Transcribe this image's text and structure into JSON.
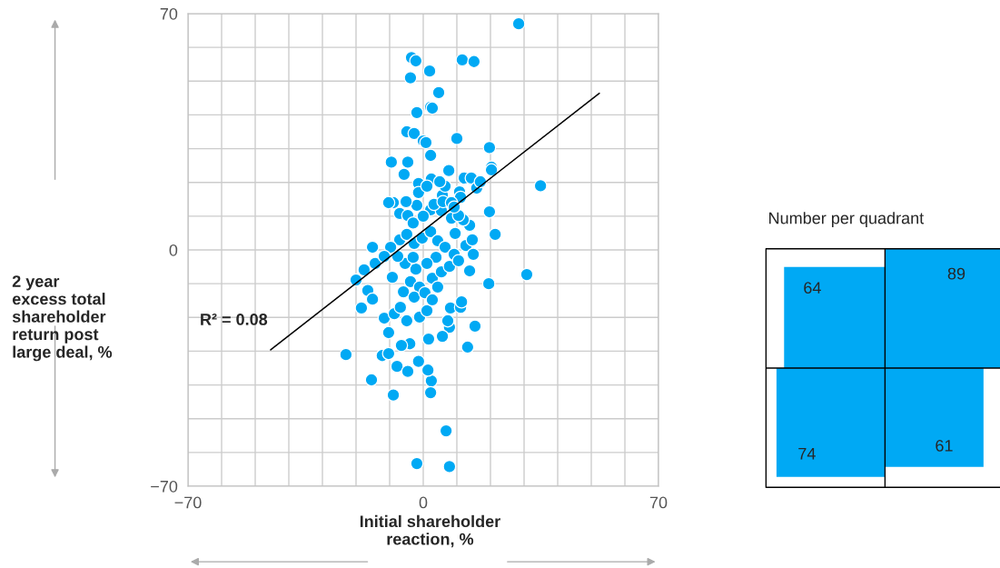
{
  "chart_data": [
    {
      "type": "scatter",
      "xlabel": "Initial shareholder\nreaction, %",
      "ylabel": "2 year\nexcess total\nshareholder\nreturn post\nlarge deal, %",
      "xlim": [
        -70,
        70
      ],
      "ylim": [
        -70,
        70
      ],
      "xticks": [
        {
          "value": -70,
          "label": "−70"
        },
        {
          "value": -60,
          "label": null
        },
        {
          "value": -50,
          "label": null
        },
        {
          "value": -40,
          "label": null
        },
        {
          "value": -30,
          "label": null
        },
        {
          "value": -20,
          "label": null
        },
        {
          "value": -10,
          "label": null
        },
        0,
        {
          "value": 10,
          "label": null
        },
        {
          "value": 20,
          "label": null
        },
        {
          "value": 30,
          "label": null
        },
        {
          "value": 40,
          "label": null
        },
        {
          "value": 50,
          "label": null
        },
        {
          "value": 60,
          "label": null
        },
        70
      ],
      "yticks": [
        {
          "value": -70,
          "label": "−70"
        },
        {
          "value": -60,
          "label": null
        },
        {
          "value": -50,
          "label": null
        },
        {
          "value": -40,
          "label": null
        },
        {
          "value": -30,
          "label": null
        },
        {
          "value": -20,
          "label": null
        },
        {
          "value": -10,
          "label": null
        },
        0,
        {
          "value": 10,
          "label": null
        },
        {
          "value": 20,
          "label": null
        },
        {
          "value": 30,
          "label": null
        },
        {
          "value": 40,
          "label": null
        },
        {
          "value": 50,
          "label": null
        },
        {
          "value": 60,
          "label": null
        },
        70
      ],
      "grid": true,
      "annotations": [
        "R² = 0.08"
      ],
      "series": [
        {
          "type": "scatter",
          "marker": "circle",
          "color": "#00a9f4",
          "x": [
            28.4,
            -3.5,
            -2.2,
            11.6,
            15.1,
            1.9,
            -3.8,
            4.6,
            2.2,
            2.7,
            -1.9,
            -4.9,
            -2.7,
            0,
            0.8,
            10,
            19.7,
            2.2,
            -4.6,
            -9.5,
            20.3,
            20.3,
            34.9,
            2.4,
            -1.4,
            -5.7,
            7.6,
            12.2,
            14.3,
            15.9,
            17,
            19.7,
            10.8,
            11.1,
            5.7,
            6.5,
            2.2,
            5.4,
            -1.9,
            -5.1,
            -8.9,
            -10.3,
            -7,
            -4.6,
            21.4,
            13.8,
            11.9,
            8.4,
            10.5,
            9.5,
            12.7,
            -15.1,
            13.8,
            19.5,
            30.8,
            -20,
            -17.6,
            -14.3,
            -16.5,
            -18.4,
            -15.1,
            -23,
            -12.2,
            -15.4,
            -8.9,
            -7.8,
            -4.6,
            -1.4,
            2.4,
            2.2,
            1.4,
            13.2,
            15.4,
            7.8,
            5.7,
            1.6,
            -4,
            -10.3,
            -6.5,
            -10.3,
            -11.6,
            -8.6,
            -4.9,
            -1.1,
            1.1,
            7.3,
            8.1,
            11.1,
            11.4,
            6.8,
            -1.9,
            7.8,
            -7,
            -4.9,
            -2.7,
            -0.3,
            2.2,
            4.3,
            6.5,
            9.2,
            3.8,
            1.1,
            -2.2,
            -5.4,
            -7.6,
            -9.7,
            -11.6,
            -3.8,
            -1.1,
            2.7,
            5.4,
            7.8,
            10.5,
            -5.9,
            -2.7,
            0.5,
            4.3,
            -6.8,
            2.7,
            -9.2,
            -3,
            0,
            3.2,
            5.9,
            8.4,
            -1.4,
            1.1,
            4.9,
            9.2,
            -3,
            14.6,
            14.9
          ],
          "values": [
            67,
            57,
            56,
            56.3,
            55.8,
            53,
            51,
            46.6,
            42.3,
            42,
            40.7,
            35,
            34.5,
            32.3,
            31.8,
            33,
            30.3,
            28,
            26,
            26,
            24.5,
            23.7,
            19,
            21,
            19.7,
            22.4,
            23.5,
            21.3,
            21.3,
            18.3,
            20.2,
            11.3,
            17.2,
            15.6,
            16.2,
            18.9,
            11.9,
            11.6,
            13.2,
            14.3,
            14,
            14,
            10.8,
            10.2,
            4.6,
            7.3,
            8.9,
            9.4,
            10.2,
            4.9,
            1.3,
            0.8,
            -6.2,
            -10,
            -7.3,
            -8.9,
            -5.9,
            -4,
            -12,
            -17.2,
            -14.6,
            -31,
            -31.3,
            -38.5,
            -43,
            -34.5,
            -36,
            -33,
            -38.8,
            -42.3,
            -35.6,
            -28.8,
            -22.6,
            -22.9,
            -25.6,
            -26.4,
            -27.8,
            -30.7,
            -28.3,
            -24.5,
            -20.2,
            -18.9,
            -21,
            -19.9,
            -18,
            -21,
            -17.2,
            -17,
            -15.4,
            -53.6,
            -63.3,
            -64.2,
            3,
            4.6,
            1.9,
            3.5,
            5.4,
            2.7,
            0.8,
            -1.3,
            -2.2,
            -4,
            -5.7,
            -4,
            -1.9,
            0.8,
            -1.9,
            -9.4,
            -11,
            -8.4,
            -6.5,
            -4.9,
            -3.2,
            -12.4,
            -14,
            -12.7,
            -11,
            -17,
            -14.8,
            -8.1,
            8,
            10,
            13.5,
            14.3,
            14,
            17,
            18.9,
            20.2,
            12.7,
            -2.2,
            3,
            -1.3
          ]
        },
        {
          "type": "line",
          "color": "#000000",
          "x": [
            -45.4,
            52.4
          ],
          "values": [
            -29.6,
            46.4
          ]
        }
      ]
    },
    {
      "type": "other",
      "title": "Number per quadrant",
      "values": [
        64,
        89,
        74,
        61
      ],
      "colors": [
        "#00a9f4",
        "#00a9f4",
        "#00a9f4",
        "#00a9f4"
      ],
      "data_labels": true
    }
  ]
}
